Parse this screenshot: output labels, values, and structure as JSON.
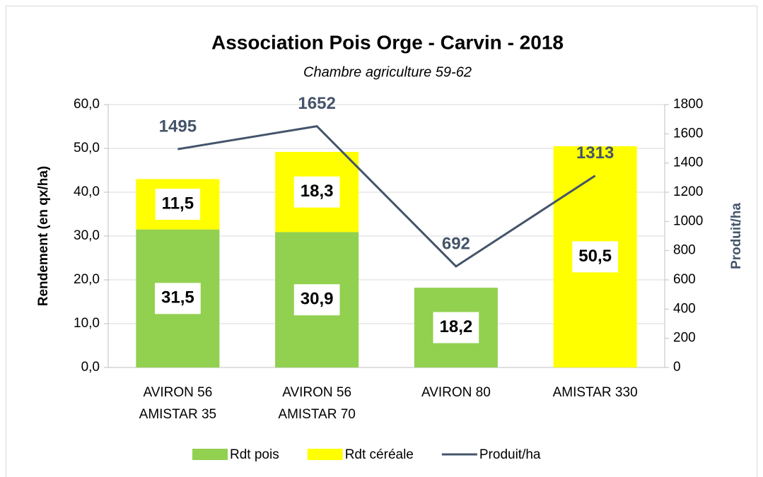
{
  "chart_data": {
    "type": "combo",
    "title": "Association Pois Orge - Carvin - 2018",
    "subtitle": "Chambre agriculture 59-62",
    "y_label": "Rendement (en qx/ha)",
    "y2_label": "Produit/ha",
    "categories": [
      [
        "AVIRON 56",
        "AMISTAR 35"
      ],
      [
        "AVIRON 56",
        "AMISTAR 70"
      ],
      [
        "AVIRON 80"
      ],
      [
        "AMISTAR 330"
      ]
    ],
    "series": [
      {
        "name": "Rdt pois",
        "type": "bar",
        "color": "#92d050",
        "values": [
          31.5,
          30.9,
          18.2,
          null
        ],
        "value_labels": [
          "31,5",
          "30,9",
          "18,2",
          null
        ]
      },
      {
        "name": "Rdt céréale",
        "type": "bar",
        "color": "#ffff00",
        "values": [
          11.5,
          18.3,
          null,
          50.5
        ],
        "value_labels": [
          "11,5",
          "18,3",
          null,
          "50,5"
        ]
      },
      {
        "name": "Produit/ha",
        "type": "line",
        "axis": "y2",
        "color": "#44546a",
        "values": [
          1495,
          1652,
          692,
          1313
        ]
      }
    ],
    "stacked": true,
    "ylim": [
      0,
      60
    ],
    "yticks": [
      {
        "value": 0,
        "label": "0,0"
      },
      {
        "value": 10,
        "label": "10,0"
      },
      {
        "value": 20,
        "label": "20,0"
      },
      {
        "value": 30,
        "label": "30,0"
      },
      {
        "value": 40,
        "label": "40,0"
      },
      {
        "value": 50,
        "label": "50,0"
      },
      {
        "value": 60,
        "label": "60,0"
      }
    ],
    "y2lim": [
      0,
      1800
    ],
    "y2ticks": [
      0,
      200,
      400,
      600,
      800,
      1000,
      1200,
      1400,
      1600,
      1800
    ],
    "grid": true,
    "legend": "bottom"
  }
}
